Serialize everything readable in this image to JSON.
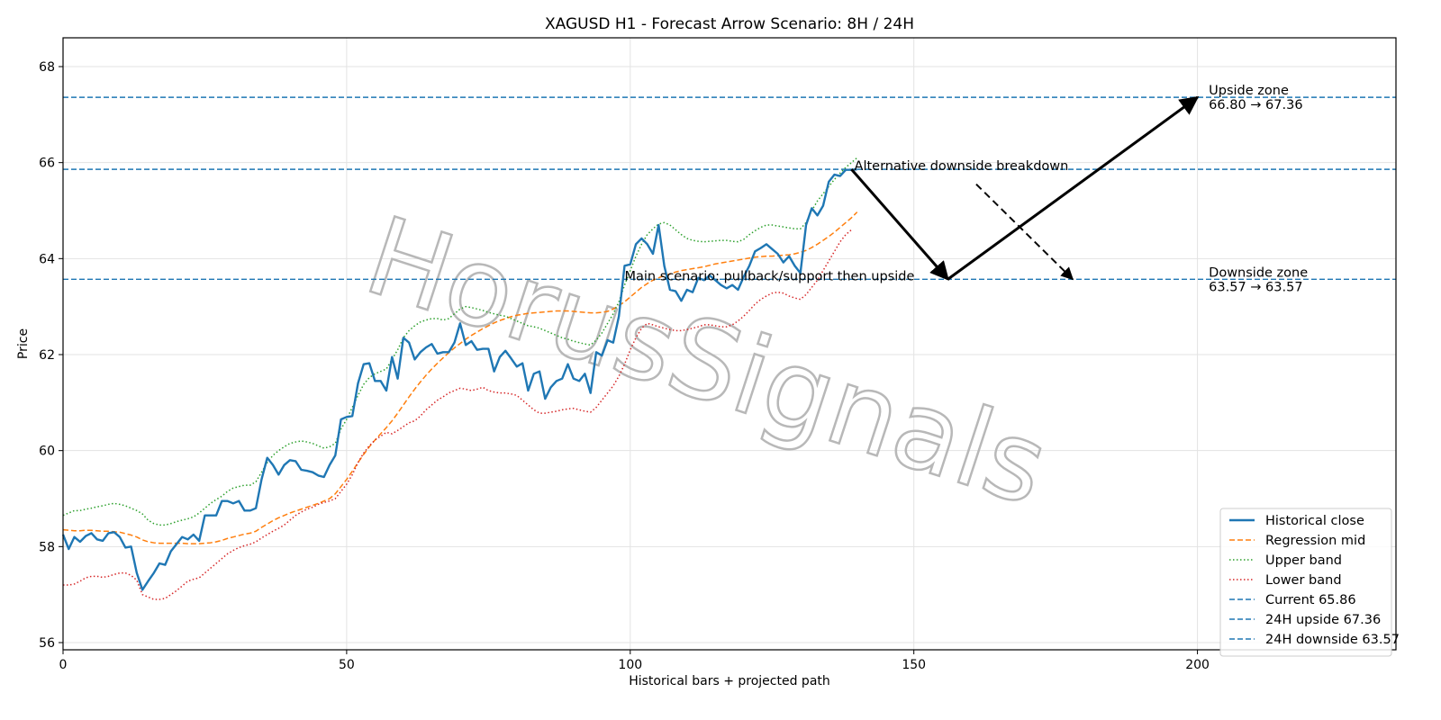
{
  "chart_data": {
    "type": "line",
    "title": "XAGUSD H1 - Forecast Arrow Scenario: 8H / 24H",
    "xlabel": "Historical bars + projected path",
    "ylabel": "Price",
    "xlim": [
      0,
      235
    ],
    "ylim": [
      55.85,
      68.6
    ],
    "x_ticks": [
      0,
      50,
      100,
      150,
      200
    ],
    "y_ticks": [
      56,
      58,
      60,
      62,
      64,
      66,
      68
    ],
    "grid": true,
    "legend_position": "bottom-right",
    "watermark": "HorusSignals",
    "series": [
      {
        "name": "Historical close",
        "color": "#1f77b4",
        "style": "solid",
        "values": [
          58.25,
          57.95,
          58.2,
          58.1,
          58.22,
          58.28,
          58.15,
          58.12,
          58.28,
          58.3,
          58.2,
          57.98,
          58.0,
          57.45,
          57.1,
          57.28,
          57.45,
          57.65,
          57.62,
          57.9,
          58.05,
          58.2,
          58.15,
          58.25,
          58.12,
          58.65,
          58.65,
          58.65,
          58.95,
          58.95,
          58.9,
          58.95,
          58.75,
          58.75,
          58.8,
          59.4,
          59.85,
          59.7,
          59.5,
          59.7,
          59.8,
          59.78,
          59.6,
          59.58,
          59.55,
          59.48,
          59.45,
          59.7,
          59.9,
          60.65,
          60.7,
          60.72,
          61.4,
          61.8,
          61.82,
          61.45,
          61.45,
          61.25,
          61.95,
          61.5,
          62.35,
          62.25,
          61.9,
          62.05,
          62.15,
          62.22,
          62.02,
          62.05,
          62.05,
          62.25,
          62.65,
          62.2,
          62.28,
          62.1,
          62.12,
          62.12,
          61.65,
          61.95,
          62.08,
          61.92,
          61.75,
          61.82,
          61.25,
          61.6,
          61.65,
          61.08,
          61.32,
          61.45,
          61.5,
          61.8,
          61.5,
          61.45,
          61.6,
          61.2,
          62.05,
          61.98,
          62.3,
          62.25,
          62.8,
          63.85,
          63.88,
          64.3,
          64.42,
          64.3,
          64.1,
          64.7,
          63.85,
          63.35,
          63.32,
          63.12,
          63.35,
          63.3,
          63.6,
          63.55,
          63.65,
          63.55,
          63.45,
          63.38,
          63.45,
          63.35,
          63.62,
          63.85,
          64.15,
          64.22,
          64.3,
          64.2,
          64.1,
          63.92,
          64.05,
          63.85,
          63.7,
          64.7,
          65.05,
          64.9,
          65.1,
          65.6,
          65.75,
          65.72,
          65.85,
          65.85,
          65.86
        ],
        "x_start": 0
      },
      {
        "name": "Regression mid",
        "color": "#ff7f0e",
        "style": "dashed",
        "values": [
          58.35,
          58.34,
          58.33,
          58.33,
          58.34,
          58.34,
          58.33,
          58.32,
          58.32,
          58.31,
          58.3,
          58.27,
          58.24,
          58.2,
          58.14,
          58.1,
          58.08,
          58.07,
          58.07,
          58.07,
          58.07,
          58.07,
          58.06,
          58.06,
          58.06,
          58.07,
          58.08,
          58.1,
          58.13,
          58.17,
          58.2,
          58.23,
          58.26,
          58.28,
          58.32,
          58.4,
          58.47,
          58.54,
          58.6,
          58.65,
          58.7,
          58.74,
          58.78,
          58.82,
          58.86,
          58.9,
          58.95,
          59.0,
          59.1,
          59.25,
          59.4,
          59.57,
          59.75,
          59.92,
          60.08,
          60.22,
          60.35,
          60.48,
          60.62,
          60.78,
          60.95,
          61.12,
          61.28,
          61.43,
          61.57,
          61.7,
          61.82,
          61.93,
          62.04,
          62.14,
          62.23,
          62.32,
          62.4,
          62.47,
          62.54,
          62.6,
          62.66,
          62.71,
          62.75,
          62.79,
          62.82,
          62.84,
          62.86,
          62.87,
          62.88,
          62.89,
          62.9,
          62.91,
          62.91,
          62.91,
          62.9,
          62.89,
          62.88,
          62.87,
          62.87,
          62.88,
          62.9,
          62.95,
          63.02,
          63.1,
          63.2,
          63.3,
          63.4,
          63.48,
          63.55,
          63.6,
          63.65,
          63.68,
          63.72,
          63.75,
          63.77,
          63.79,
          63.81,
          63.83,
          63.86,
          63.89,
          63.91,
          63.93,
          63.95,
          63.97,
          63.99,
          64.01,
          64.03,
          64.04,
          64.05,
          64.05,
          64.06,
          64.07,
          64.08,
          64.1,
          64.13,
          64.17,
          64.23,
          64.3,
          64.38,
          64.46,
          64.55,
          64.65,
          64.75,
          64.85,
          64.97
        ],
        "x_start": 0
      },
      {
        "name": "Upper band",
        "color": "#2ca02c",
        "style": "dotted",
        "values": [
          58.65,
          58.7,
          58.75,
          58.75,
          58.78,
          58.8,
          58.83,
          58.85,
          58.88,
          58.9,
          58.88,
          58.85,
          58.8,
          58.75,
          58.68,
          58.55,
          58.48,
          58.45,
          58.45,
          58.48,
          58.52,
          58.55,
          58.58,
          58.62,
          58.7,
          58.8,
          58.9,
          58.98,
          59.05,
          59.15,
          59.22,
          59.25,
          59.28,
          59.28,
          59.35,
          59.55,
          59.75,
          59.9,
          60.0,
          60.08,
          60.15,
          60.18,
          60.2,
          60.18,
          60.15,
          60.1,
          60.05,
          60.08,
          60.15,
          60.45,
          60.65,
          60.9,
          61.15,
          61.38,
          61.52,
          61.6,
          61.65,
          61.7,
          61.9,
          62.1,
          62.35,
          62.5,
          62.6,
          62.68,
          62.72,
          62.75,
          62.75,
          62.72,
          62.75,
          62.85,
          62.95,
          63.0,
          62.98,
          62.95,
          62.92,
          62.88,
          62.85,
          62.82,
          62.8,
          62.75,
          62.7,
          62.65,
          62.6,
          62.58,
          62.55,
          62.5,
          62.45,
          62.4,
          62.35,
          62.32,
          62.28,
          62.25,
          62.22,
          62.2,
          62.3,
          62.45,
          62.65,
          62.85,
          63.1,
          63.45,
          63.75,
          64.05,
          64.3,
          64.5,
          64.62,
          64.72,
          64.75,
          64.7,
          64.6,
          64.5,
          64.42,
          64.38,
          64.36,
          64.35,
          64.36,
          64.37,
          64.38,
          64.38,
          64.36,
          64.35,
          64.4,
          64.5,
          64.58,
          64.65,
          64.7,
          64.7,
          64.68,
          64.66,
          64.64,
          64.62,
          64.62,
          64.75,
          65.0,
          65.2,
          65.35,
          65.5,
          65.65,
          65.78,
          65.9,
          66.0,
          66.1
        ],
        "x_start": 0
      },
      {
        "name": "Lower band",
        "color": "#d62728",
        "style": "dotted",
        "values": [
          57.2,
          57.2,
          57.22,
          57.28,
          57.35,
          57.38,
          57.38,
          57.36,
          57.38,
          57.42,
          57.45,
          57.45,
          57.4,
          57.3,
          57.0,
          56.95,
          56.9,
          56.9,
          56.92,
          57.0,
          57.08,
          57.18,
          57.28,
          57.32,
          57.35,
          57.45,
          57.55,
          57.65,
          57.75,
          57.85,
          57.92,
          57.98,
          58.02,
          58.05,
          58.1,
          58.18,
          58.25,
          58.32,
          58.38,
          58.45,
          58.55,
          58.65,
          58.72,
          58.78,
          58.82,
          58.88,
          58.92,
          58.95,
          59.0,
          59.15,
          59.3,
          59.5,
          59.75,
          59.95,
          60.1,
          60.22,
          60.3,
          60.38,
          60.35,
          60.42,
          60.5,
          60.58,
          60.62,
          60.72,
          60.85,
          60.95,
          61.05,
          61.12,
          61.2,
          61.25,
          61.3,
          61.28,
          61.25,
          61.28,
          61.32,
          61.25,
          61.22,
          61.2,
          61.2,
          61.18,
          61.15,
          61.05,
          60.95,
          60.85,
          60.78,
          60.78,
          60.8,
          60.82,
          60.85,
          60.87,
          60.88,
          60.85,
          60.82,
          60.8,
          60.9,
          61.05,
          61.2,
          61.35,
          61.55,
          61.8,
          62.1,
          62.35,
          62.55,
          62.65,
          62.62,
          62.58,
          62.55,
          62.52,
          62.5,
          62.5,
          62.52,
          62.55,
          62.58,
          62.62,
          62.62,
          62.6,
          62.58,
          62.58,
          62.62,
          62.7,
          62.8,
          62.92,
          63.05,
          63.15,
          63.22,
          63.28,
          63.3,
          63.28,
          63.22,
          63.18,
          63.15,
          63.25,
          63.4,
          63.55,
          63.75,
          63.95,
          64.15,
          64.35,
          64.5,
          64.6
        ],
        "x_start": 0
      }
    ],
    "reference_lines": [
      {
        "name": "Current 65.86",
        "value": 65.86,
        "color": "#1f77b4",
        "style": "dashed"
      },
      {
        "name": "24H upside 67.36",
        "value": 67.36,
        "color": "#1f77b4",
        "style": "dashed"
      },
      {
        "name": "24H downside 63.57",
        "value": 63.57,
        "color": "#1f77b4",
        "style": "dashed"
      }
    ],
    "arrows": [
      {
        "id": "main-leg-1",
        "from": [
          139,
          65.86
        ],
        "to": [
          156,
          63.57
        ],
        "style": "solid"
      },
      {
        "id": "main-leg-2",
        "from": [
          156,
          63.57
        ],
        "to": [
          200,
          67.36
        ],
        "style": "solid"
      },
      {
        "id": "alt-leg",
        "from": [
          161,
          65.55
        ],
        "to": [
          178,
          63.57
        ],
        "style": "dashed"
      }
    ],
    "annotations": [
      {
        "id": "alt-label",
        "text": "Alternative downside breakdown",
        "x": 139.5,
        "y": 65.86,
        "anchor": "start"
      },
      {
        "id": "main-label",
        "text": "Main scenario: pullback/support then upside",
        "x": 99,
        "y": 63.57,
        "anchor": "start"
      },
      {
        "id": "upside-zone",
        "lines": [
          "Upside zone",
          "66.80 → 67.36"
        ],
        "x": 202,
        "y": 67.36
      },
      {
        "id": "downside-zone",
        "lines": [
          "Downside zone",
          "63.57 → 63.57"
        ],
        "x": 202,
        "y": 63.57
      }
    ]
  }
}
